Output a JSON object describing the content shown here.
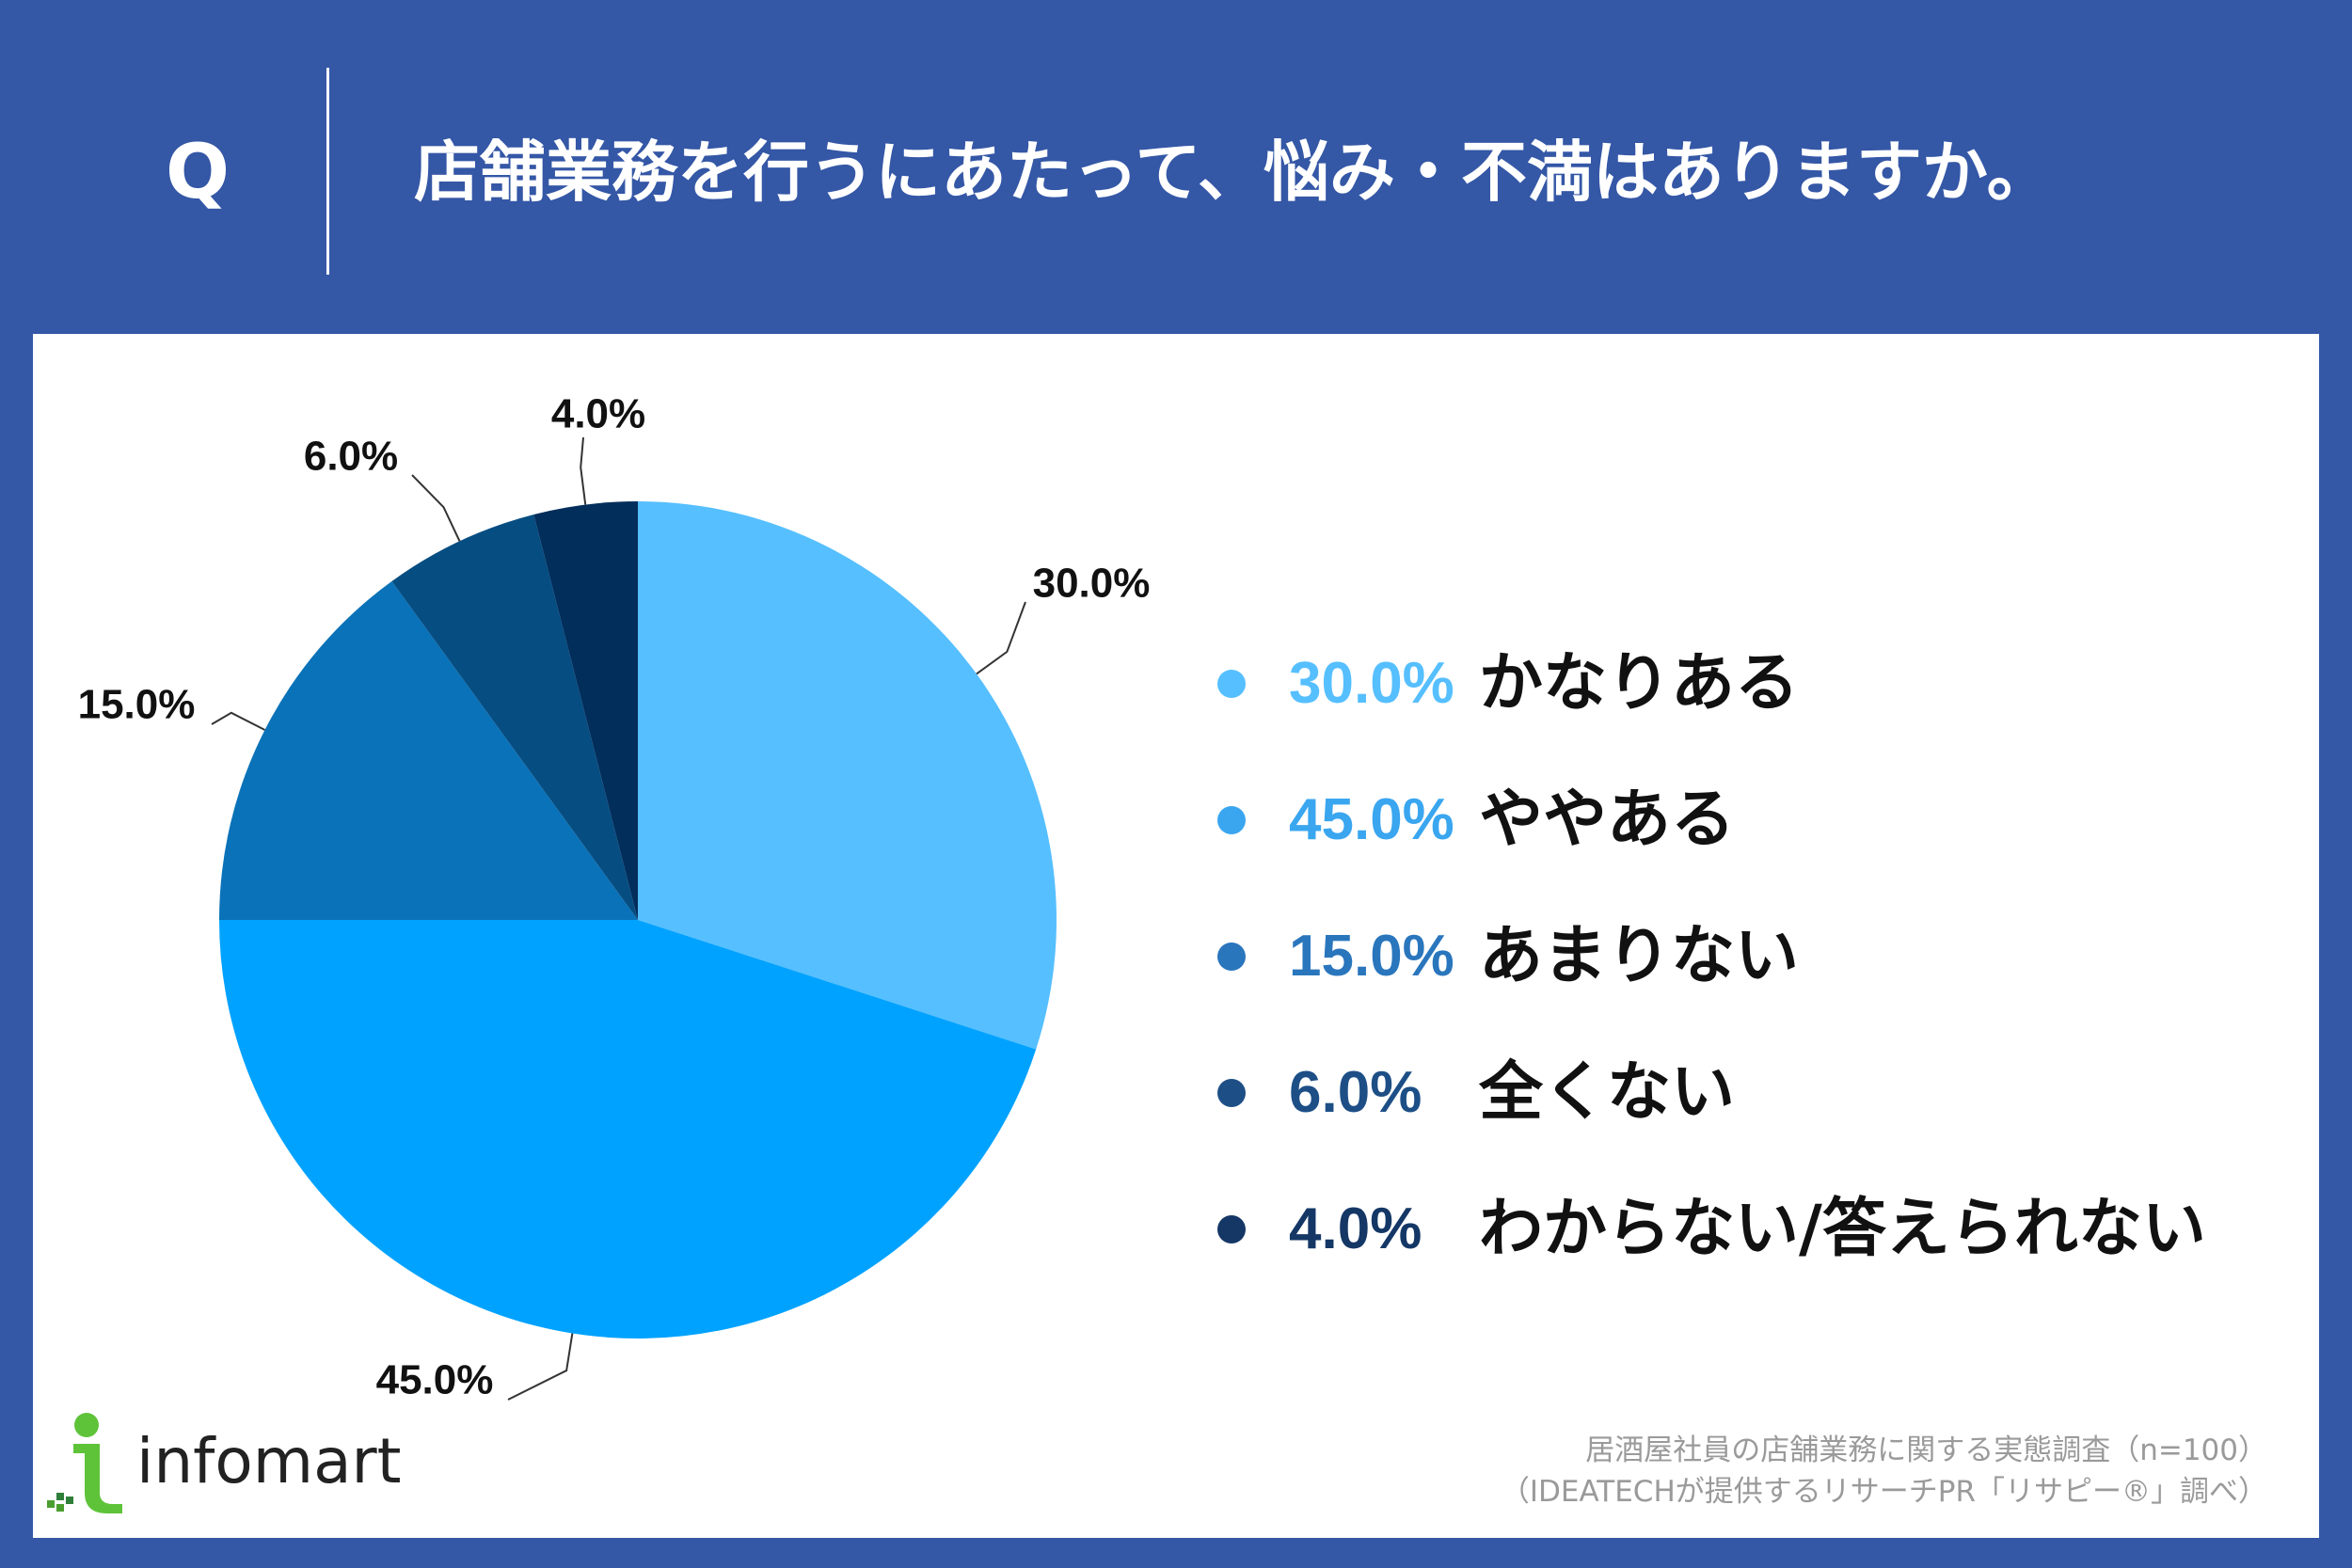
{
  "header": {
    "q_mark": "Q",
    "question": "店舗業務を行うにあたって、悩み・不満はありますか。"
  },
  "chart_data": {
    "type": "pie",
    "title": "",
    "categories": [
      "かなりある",
      "ややある",
      "あまりない",
      "全くない",
      "わからない/答えられない"
    ],
    "values": [
      30.0,
      45.0,
      15.0,
      6.0,
      4.0
    ],
    "data_labels": [
      "30.0%",
      "45.0%",
      "15.0%",
      "6.0%",
      "4.0%"
    ],
    "colors": [
      "#56bfff",
      "#00a2ff",
      "#0a72b8",
      "#064d82",
      "#022e5c"
    ],
    "start": "12 o'clock, clockwise",
    "legend_position": "right"
  },
  "legend": {
    "items": [
      {
        "pct": "30.0%",
        "label": "かなりある",
        "pct_color": "#56bfff",
        "dot_color": "#56bfff"
      },
      {
        "pct": "45.0%",
        "label": "ややある",
        "pct_color": "#3aa6f0",
        "dot_color": "#3aa6f0"
      },
      {
        "pct": "15.0%",
        "label": "あまりない",
        "pct_color": "#2a76bd",
        "dot_color": "#2a76bd"
      },
      {
        "pct": "6.0%",
        "label": "全くない",
        "pct_color": "#1d4f86",
        "dot_color": "#1d4f86"
      },
      {
        "pct": "4.0%",
        "label": "わからない/答えられない",
        "pct_color": "#143766",
        "dot_color": "#143766"
      }
    ]
  },
  "logo": {
    "text": "infomart"
  },
  "source": {
    "line1": "居酒屋社員の店舗業務に関する実態調査（n=100）",
    "line2": "（IDEATECHが提供するリサーチPR「リサピー®」調べ）"
  }
}
